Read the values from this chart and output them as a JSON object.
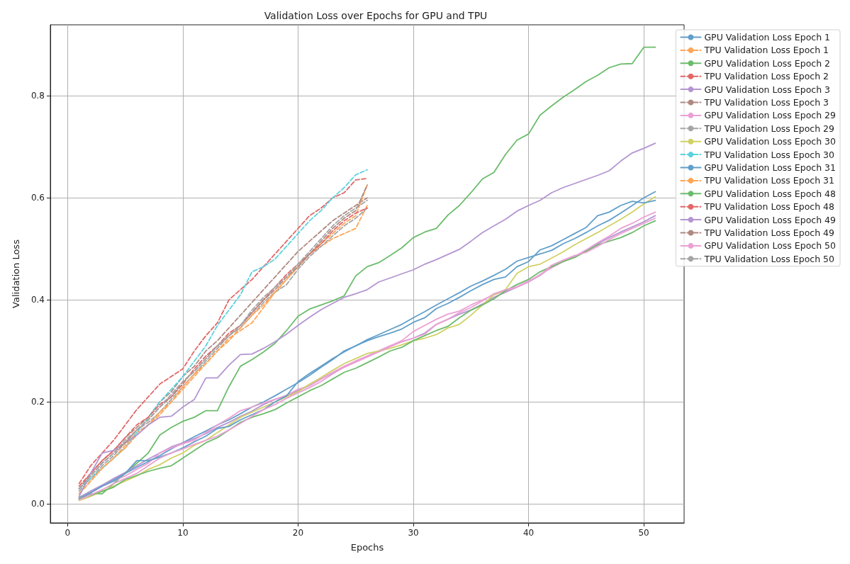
{
  "chart_data": {
    "type": "line",
    "title": "Validation Loss over Epochs for GPU and TPU",
    "xlabel": "Epochs",
    "ylabel": "Validation Loss",
    "xlim": [
      -1.5,
      53.5
    ],
    "xticks": [
      0,
      10,
      20,
      30,
      40,
      50
    ],
    "ylim": [
      -0.037,
      0.939
    ],
    "yticks": [
      {
        "value": 0,
        "label": "0.0"
      },
      0.2,
      0.4,
      0.6,
      0.8
    ],
    "grid": true,
    "legend": "top right",
    "marker": "none",
    "x": [
      1,
      2,
      3,
      4,
      5,
      6,
      7,
      8,
      9,
      10,
      11,
      12,
      13,
      14,
      15,
      16,
      17,
      18,
      19,
      20,
      21,
      22,
      23,
      24,
      25,
      26,
      27,
      28,
      29,
      30,
      31,
      32,
      33,
      34,
      35,
      36,
      37,
      38,
      39,
      40,
      41,
      42,
      43,
      44,
      45,
      46,
      47,
      48,
      49,
      50,
      51
    ],
    "series": [
      {
        "name": "GPU Validation Loss Epoch 1",
        "color": "#629fca",
        "line_style": "solid",
        "values": [
          0.013,
          0.025,
          0.037,
          0.048,
          0.06,
          0.072,
          0.083,
          0.095,
          0.108,
          0.12,
          0.132,
          0.143,
          0.155,
          0.165,
          0.177,
          0.19,
          0.2,
          0.212,
          0.225,
          0.238,
          0.252,
          0.268,
          0.283,
          0.3,
          0.31,
          0.322,
          0.332,
          0.342,
          0.352,
          0.365,
          0.377,
          0.39,
          0.402,
          0.414,
          0.427,
          0.437,
          0.448,
          0.46,
          0.476,
          0.483,
          0.49,
          0.497,
          0.51,
          0.52,
          0.532,
          0.545,
          0.556,
          0.57,
          0.585,
          0.6,
          0.612
        ]
      },
      {
        "name": "TPU Validation Loss Epoch 1",
        "color": "#ffa556",
        "line_style": "dashed",
        "x": [
          1,
          2,
          3,
          4,
          5,
          6,
          7,
          8,
          9,
          10,
          11,
          12,
          13,
          14,
          15,
          16,
          17,
          18,
          19,
          20,
          21,
          22,
          23,
          24,
          25,
          26
        ],
        "values": [
          0.02,
          0.045,
          0.07,
          0.09,
          0.115,
          0.14,
          0.155,
          0.175,
          0.2,
          0.225,
          0.25,
          0.275,
          0.3,
          0.325,
          0.34,
          0.355,
          0.385,
          0.415,
          0.44,
          0.465,
          0.49,
          0.505,
          0.52,
          0.53,
          0.54,
          0.585
        ]
      },
      {
        "name": "GPU Validation Loss Epoch 2",
        "color": "#6bbc6b",
        "line_style": "solid",
        "values": [
          0.012,
          0.02,
          0.02,
          0.04,
          0.06,
          0.08,
          0.1,
          0.135,
          0.15,
          0.162,
          0.17,
          0.183,
          0.183,
          0.23,
          0.27,
          0.283,
          0.298,
          0.315,
          0.34,
          0.368,
          0.382,
          0.39,
          0.398,
          0.408,
          0.447,
          0.465,
          0.473,
          0.487,
          0.502,
          0.522,
          0.533,
          0.54,
          0.566,
          0.585,
          0.61,
          0.637,
          0.65,
          0.685,
          0.713,
          0.725,
          0.762,
          0.78,
          0.797,
          0.812,
          0.828,
          0.84,
          0.855,
          0.862,
          0.863,
          0.895,
          0.895
        ]
      },
      {
        "name": "TPU Validation Loss Epoch 2",
        "color": "#e26868",
        "line_style": "dashed",
        "x": [
          1,
          2,
          3,
          4,
          5,
          6,
          7,
          8,
          9,
          10,
          11,
          12,
          13,
          14,
          15,
          16,
          17,
          18,
          19,
          20,
          21,
          22,
          23,
          24,
          25,
          26
        ],
        "values": [
          0.04,
          0.075,
          0.1,
          0.125,
          0.155,
          0.185,
          0.21,
          0.235,
          0.25,
          0.265,
          0.3,
          0.33,
          0.355,
          0.4,
          0.42,
          0.44,
          0.465,
          0.49,
          0.515,
          0.54,
          0.565,
          0.58,
          0.6,
          0.61,
          0.635,
          0.638
        ]
      },
      {
        "name": "GPU Validation Loss Epoch 3",
        "color": "#b495d1",
        "line_style": "solid",
        "values": [
          0.012,
          0.025,
          0.037,
          0.05,
          0.062,
          0.075,
          0.088,
          0.1,
          0.112,
          0.12,
          0.128,
          0.138,
          0.15,
          0.16,
          0.172,
          0.182,
          0.195,
          0.205,
          0.212,
          0.222,
          0.232,
          0.245,
          0.257,
          0.268,
          0.28,
          0.29,
          0.3,
          0.31,
          0.318,
          0.325,
          0.335,
          0.352,
          0.362,
          0.372,
          0.38,
          0.392,
          0.405,
          0.415,
          0.425,
          0.435,
          0.448,
          0.465,
          0.475,
          0.485,
          0.497,
          0.51,
          0.522,
          0.533,
          0.543,
          0.553,
          0.565
        ]
      },
      {
        "name": "TPU Validation Loss Epoch 3",
        "color": "#af8981",
        "line_style": "dashed",
        "x": [
          1,
          2,
          3,
          4,
          5,
          6,
          7,
          8,
          9,
          10,
          11,
          12,
          13,
          14,
          15,
          16,
          17,
          18,
          19,
          20,
          21,
          22,
          23,
          24,
          25,
          26
        ],
        "values": [
          0.03,
          0.06,
          0.085,
          0.105,
          0.13,
          0.15,
          0.17,
          0.2,
          0.22,
          0.25,
          0.27,
          0.3,
          0.32,
          0.345,
          0.37,
          0.395,
          0.42,
          0.445,
          0.47,
          0.495,
          0.515,
          0.535,
          0.555,
          0.57,
          0.585,
          0.6
        ]
      },
      {
        "name": "GPU Validation Loss Epoch 29",
        "color": "#eca0d4",
        "line_style": "solid",
        "values": [
          0.01,
          0.022,
          0.035,
          0.045,
          0.055,
          0.068,
          0.08,
          0.1,
          0.11,
          0.118,
          0.125,
          0.14,
          0.155,
          0.168,
          0.183,
          0.19,
          0.198,
          0.205,
          0.213,
          0.225,
          0.232,
          0.245,
          0.258,
          0.27,
          0.28,
          0.29,
          0.3,
          0.31,
          0.32,
          0.338,
          0.35,
          0.362,
          0.372,
          0.378,
          0.39,
          0.4,
          0.41,
          0.418,
          0.425,
          0.435,
          0.45,
          0.463,
          0.475,
          0.485,
          0.498,
          0.512,
          0.525,
          0.54,
          0.55,
          0.562,
          0.572
        ]
      },
      {
        "name": "TPU Validation Loss Epoch 29",
        "color": "#a5a5a5",
        "line_style": "dashed",
        "x": [
          1,
          2,
          3,
          4,
          5,
          6,
          7,
          8,
          9,
          10,
          11,
          12,
          13,
          14,
          15,
          16,
          17,
          18,
          19,
          20,
          21,
          22,
          23,
          24,
          25,
          26
        ],
        "values": [
          0.025,
          0.05,
          0.075,
          0.095,
          0.12,
          0.145,
          0.16,
          0.18,
          0.205,
          0.23,
          0.255,
          0.28,
          0.305,
          0.33,
          0.345,
          0.37,
          0.395,
          0.415,
          0.43,
          0.46,
          0.485,
          0.505,
          0.525,
          0.545,
          0.56,
          0.58
        ]
      },
      {
        "name": "GPU Validation Loss Epoch 30",
        "color": "#d0d164",
        "line_style": "solid",
        "values": [
          0.007,
          0.015,
          0.025,
          0.035,
          0.045,
          0.055,
          0.068,
          0.077,
          0.09,
          0.1,
          0.115,
          0.125,
          0.14,
          0.155,
          0.17,
          0.18,
          0.19,
          0.2,
          0.21,
          0.22,
          0.235,
          0.248,
          0.262,
          0.275,
          0.285,
          0.295,
          0.3,
          0.305,
          0.312,
          0.32,
          0.325,
          0.332,
          0.345,
          0.352,
          0.37,
          0.39,
          0.41,
          0.42,
          0.452,
          0.465,
          0.47,
          0.482,
          0.494,
          0.508,
          0.52,
          0.532,
          0.545,
          0.558,
          0.572,
          0.588,
          0.602
        ]
      },
      {
        "name": "TPU Validation Loss Epoch 30",
        "color": "#5dd2de",
        "line_style": "dashed",
        "x": [
          1,
          2,
          3,
          4,
          5,
          6,
          7,
          8,
          9,
          10,
          11,
          12,
          13,
          14,
          15,
          16,
          17,
          18,
          19,
          20,
          21,
          22,
          23,
          24,
          25,
          26
        ],
        "values": [
          0.03,
          0.05,
          0.07,
          0.09,
          0.11,
          0.14,
          0.17,
          0.2,
          0.225,
          0.25,
          0.28,
          0.31,
          0.35,
          0.38,
          0.41,
          0.455,
          0.465,
          0.48,
          0.505,
          0.53,
          0.555,
          0.575,
          0.6,
          0.62,
          0.645,
          0.655
        ]
      },
      {
        "name": "GPU Validation Loss Epoch 31",
        "color": "#629fca",
        "line_style": "solid",
        "values": [
          0.01,
          0.022,
          0.035,
          0.045,
          0.06,
          0.085,
          0.085,
          0.092,
          0.1,
          0.11,
          0.122,
          0.133,
          0.148,
          0.152,
          0.165,
          0.175,
          0.185,
          0.2,
          0.212,
          0.24,
          0.256,
          0.27,
          0.285,
          0.298,
          0.31,
          0.32,
          0.328,
          0.335,
          0.343,
          0.356,
          0.365,
          0.383,
          0.393,
          0.405,
          0.418,
          0.43,
          0.44,
          0.445,
          0.465,
          0.475,
          0.498,
          0.506,
          0.518,
          0.53,
          0.542,
          0.565,
          0.572,
          0.585,
          0.593,
          0.59,
          0.595
        ]
      },
      {
        "name": "TPU Validation Loss Epoch 31",
        "color": "#ffa556",
        "line_style": "dashed",
        "x": [
          1,
          2,
          3,
          4,
          5,
          6,
          7,
          8,
          9,
          10,
          11,
          12,
          13,
          14,
          15,
          16,
          17,
          18,
          19,
          20,
          21,
          22,
          23,
          24,
          25,
          26
        ],
        "values": [
          0.02,
          0.045,
          0.07,
          0.09,
          0.11,
          0.135,
          0.155,
          0.18,
          0.2,
          0.23,
          0.255,
          0.275,
          0.3,
          0.32,
          0.345,
          0.37,
          0.39,
          0.415,
          0.44,
          0.465,
          0.49,
          0.51,
          0.53,
          0.55,
          0.565,
          0.625
        ]
      },
      {
        "name": "GPU Validation Loss Epoch 48",
        "color": "#6bbc6b",
        "line_style": "solid",
        "values": [
          0.01,
          0.017,
          0.025,
          0.033,
          0.048,
          0.056,
          0.064,
          0.07,
          0.075,
          0.09,
          0.105,
          0.12,
          0.13,
          0.145,
          0.16,
          0.17,
          0.177,
          0.185,
          0.198,
          0.21,
          0.222,
          0.232,
          0.245,
          0.258,
          0.266,
          0.277,
          0.288,
          0.3,
          0.307,
          0.32,
          0.33,
          0.34,
          0.348,
          0.365,
          0.38,
          0.39,
          0.402,
          0.418,
          0.43,
          0.44,
          0.455,
          0.465,
          0.475,
          0.483,
          0.495,
          0.508,
          0.515,
          0.522,
          0.532,
          0.545,
          0.555
        ]
      },
      {
        "name": "TPU Validation Loss Epoch 48",
        "color": "#e26868",
        "line_style": "dashed",
        "x": [
          1,
          2,
          3,
          4,
          5,
          6,
          7,
          8,
          9,
          10,
          11,
          12,
          13,
          14,
          15,
          16,
          17,
          18,
          19,
          20,
          21,
          22,
          23,
          24,
          25,
          26
        ],
        "values": [
          0.035,
          0.06,
          0.085,
          0.105,
          0.13,
          0.155,
          0.17,
          0.195,
          0.21,
          0.235,
          0.265,
          0.29,
          0.31,
          0.335,
          0.35,
          0.375,
          0.4,
          0.425,
          0.45,
          0.47,
          0.49,
          0.51,
          0.535,
          0.555,
          0.57,
          0.58
        ]
      },
      {
        "name": "GPU Validation Loss Epoch 49",
        "color": "#b495d1",
        "line_style": "solid",
        "values": [
          0.015,
          0.06,
          0.1,
          0.105,
          0.12,
          0.135,
          0.155,
          0.17,
          0.172,
          0.19,
          0.205,
          0.247,
          0.247,
          0.272,
          0.293,
          0.294,
          0.305,
          0.318,
          0.333,
          0.35,
          0.366,
          0.381,
          0.393,
          0.405,
          0.412,
          0.42,
          0.435,
          0.443,
          0.451,
          0.459,
          0.47,
          0.479,
          0.489,
          0.499,
          0.515,
          0.532,
          0.545,
          0.558,
          0.574,
          0.585,
          0.595,
          0.61,
          0.62,
          0.628,
          0.636,
          0.644,
          0.653,
          0.672,
          0.688,
          0.697,
          0.707
        ]
      },
      {
        "name": "TPU Validation Loss Epoch 49",
        "color": "#af8981",
        "line_style": "dashed",
        "x": [
          1,
          2,
          3,
          4,
          5,
          6,
          7,
          8,
          9,
          10,
          11,
          12,
          13,
          14,
          15,
          16,
          17,
          18,
          19,
          20,
          21,
          22,
          23,
          24,
          25,
          26
        ],
        "values": [
          0.03,
          0.055,
          0.08,
          0.1,
          0.12,
          0.145,
          0.165,
          0.19,
          0.21,
          0.24,
          0.26,
          0.285,
          0.31,
          0.33,
          0.35,
          0.375,
          0.4,
          0.42,
          0.445,
          0.465,
          0.49,
          0.515,
          0.54,
          0.56,
          0.575,
          0.625
        ]
      },
      {
        "name": "GPU Validation Loss Epoch 50",
        "color": "#eca0d4",
        "line_style": "solid",
        "values": [
          0.008,
          0.018,
          0.028,
          0.04,
          0.05,
          0.06,
          0.075,
          0.09,
          0.1,
          0.108,
          0.117,
          0.125,
          0.133,
          0.145,
          0.158,
          0.172,
          0.185,
          0.195,
          0.207,
          0.218,
          0.228,
          0.24,
          0.255,
          0.268,
          0.278,
          0.288,
          0.298,
          0.308,
          0.318,
          0.325,
          0.333,
          0.352,
          0.362,
          0.375,
          0.385,
          0.398,
          0.412,
          0.42,
          0.426,
          0.437,
          0.448,
          0.468,
          0.478,
          0.487,
          0.493,
          0.505,
          0.518,
          0.53,
          0.54,
          0.55,
          0.56
        ]
      },
      {
        "name": "TPU Validation Loss Epoch 50",
        "color": "#a5a5a5",
        "line_style": "dashed",
        "x": [
          1,
          2,
          3,
          4,
          5,
          6,
          7,
          8,
          9,
          10,
          11,
          12,
          13,
          14,
          15,
          16,
          17,
          18,
          19,
          20,
          21,
          22,
          23,
          24,
          25,
          26
        ],
        "values": [
          0.03,
          0.055,
          0.08,
          0.1,
          0.125,
          0.145,
          0.165,
          0.19,
          0.215,
          0.24,
          0.26,
          0.285,
          0.31,
          0.33,
          0.35,
          0.38,
          0.405,
          0.425,
          0.445,
          0.47,
          0.495,
          0.52,
          0.545,
          0.565,
          0.58,
          0.595
        ]
      }
    ]
  }
}
